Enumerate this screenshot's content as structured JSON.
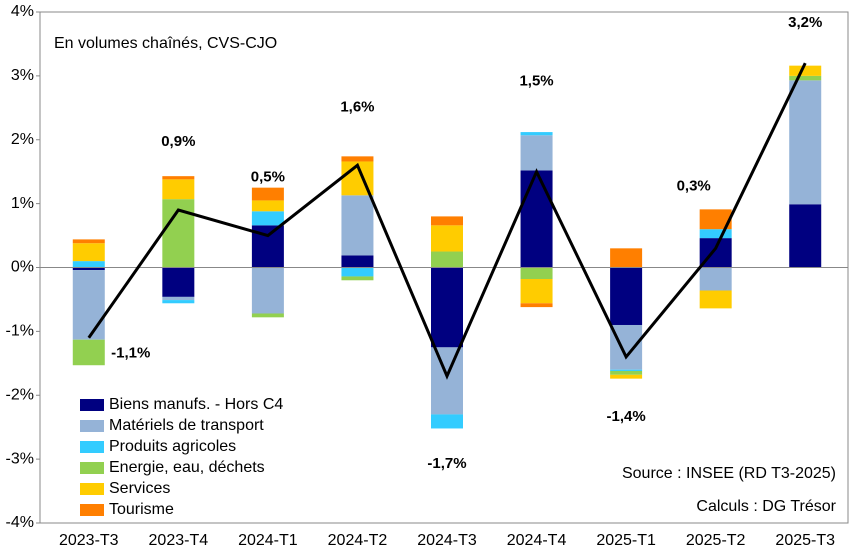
{
  "chart_data": {
    "type": "stacked-bar-line",
    "annotations": [
      "En volumes chaînés, CVS-CJO",
      "Source : INSEE (RD T3-2025)",
      "Calculs : DG Trésor"
    ],
    "categories": [
      "2023-T3",
      "2023-T4",
      "2024-T1",
      "2024-T2",
      "2024-T3",
      "2024-T4",
      "2025-T1",
      "2025-T2",
      "2025-T3"
    ],
    "series": [
      {
        "name": "Biens manufs. - Hors C4",
        "color": "#000080",
        "values": [
          -0.04,
          -0.46,
          0.66,
          0.19,
          -1.25,
          1.52,
          -0.9,
          0.46,
          0.99
        ]
      },
      {
        "name": "Matériels de transport",
        "color": "#95b3d7",
        "values": [
          -1.09,
          -0.05,
          -0.72,
          0.94,
          -1.05,
          0.55,
          -0.7,
          -0.36,
          1.94
        ]
      },
      {
        "name": "Produits agricoles",
        "color": "#33ccff",
        "values": [
          0.1,
          -0.05,
          0.22,
          -0.14,
          -0.22,
          0.05,
          -0.02,
          0.14,
          0
        ]
      },
      {
        "name": "Energie, eau, déchets",
        "color": "#92d050",
        "values": [
          -0.4,
          1.07,
          -0.06,
          -0.06,
          0.25,
          -0.18,
          -0.06,
          0,
          0.07
        ]
      },
      {
        "name": "Services",
        "color": "#ffcc00",
        "values": [
          0.28,
          0.31,
          0.17,
          0.53,
          0.41,
          -0.38,
          -0.06,
          -0.28,
          0.16
        ]
      },
      {
        "name": "Tourisme",
        "color": "#ff7f00",
        "values": [
          0.06,
          0.05,
          0.2,
          0.08,
          0.14,
          -0.06,
          0.3,
          0.31,
          0
        ]
      }
    ],
    "line": {
      "color": "#000000",
      "values": [
        -1.1,
        0.9,
        0.5,
        1.6,
        -1.7,
        1.5,
        -1.4,
        0.3,
        3.2
      ],
      "value_labels": [
        "-1,1%",
        "0,9%",
        "0,5%",
        "1,6%",
        "-1,7%",
        "1,5%",
        "-1,4%",
        "0,3%",
        "3,2%"
      ]
    },
    "ylim": [
      -4,
      4
    ],
    "yticks": [
      {
        "value": -4,
        "label": "-4%"
      },
      {
        "value": -3,
        "label": "-3%"
      },
      {
        "value": -2,
        "label": "-2%"
      },
      {
        "value": -1,
        "label": "-1%"
      },
      {
        "value": 0,
        "label": "0%"
      },
      {
        "value": 1,
        "label": "1%"
      },
      {
        "value": 2,
        "label": "2%"
      },
      {
        "value": 3,
        "label": "3%"
      },
      {
        "value": 4,
        "label": "4%"
      }
    ],
    "legend": "bottom-left"
  }
}
